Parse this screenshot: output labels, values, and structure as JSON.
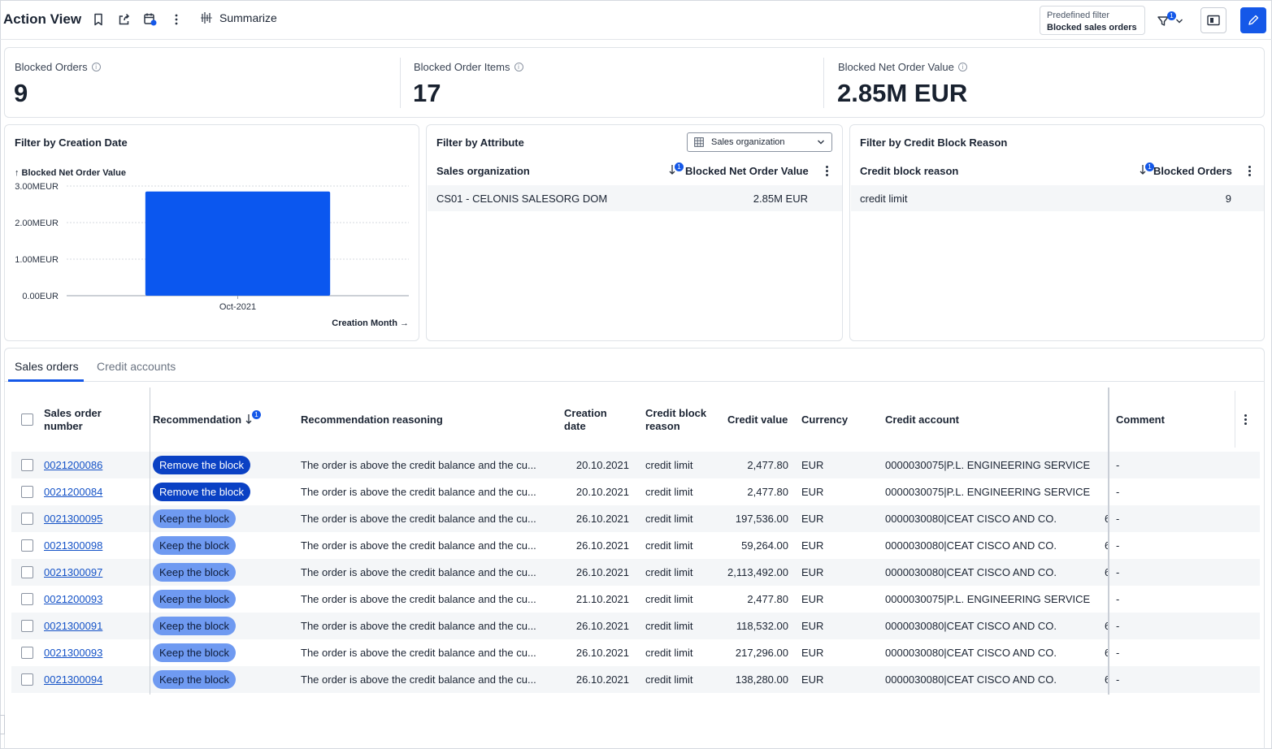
{
  "header": {
    "title": "Action View",
    "summarize_label": "Summarize",
    "predefined_filter_label": "Predefined filter",
    "predefined_filter_value": "Blocked sales orders",
    "filter_count": "1",
    "icons": [
      "bookmark-icon",
      "share-icon",
      "calendar-icon",
      "more-vertical-icon",
      "sparkle-icon",
      "filter-icon",
      "panel-icon",
      "pencil-icon"
    ],
    "accent_color": "#1558e8"
  },
  "kpis": [
    {
      "label": "Blocked Orders",
      "value": "9"
    },
    {
      "label": "Blocked Order Items",
      "value": "17"
    },
    {
      "label": "Blocked Net Order Value",
      "value": "2.85M EUR"
    }
  ],
  "creation_date_card": {
    "title": "Filter by Creation Date",
    "y_title": "↑ Blocked Net Order Value",
    "x_title": "Creation Month →"
  },
  "chart_data": {
    "type": "bar",
    "categories": [
      "Oct-2021"
    ],
    "values": [
      2.85
    ],
    "y_ticks": [
      "0.00EUR",
      "1.00MEUR",
      "2.00MEUR",
      "3.00MEUR"
    ],
    "ylim": [
      0,
      3
    ],
    "ylabel": "↑ Blocked Net Order Value",
    "xlabel": "Creation Month →",
    "grid": true,
    "bar_color": "#0b57ef"
  },
  "attribute_card": {
    "title": "Filter by Attribute",
    "dropdown_value": "Sales organization",
    "col1": "Sales organization",
    "col2": "Blocked Net Order Value",
    "sort_badge": "1",
    "rows": [
      {
        "name": "CS01 - CELONIS SALESORG DOM",
        "value": "2.85M EUR"
      }
    ]
  },
  "credit_card": {
    "title": "Filter by Credit Block Reason",
    "col1": "Credit block reason",
    "col2": "Blocked Orders",
    "sort_badge": "1",
    "rows": [
      {
        "name": "credit limit",
        "value": "9"
      }
    ]
  },
  "tabs": [
    {
      "label": "Sales orders",
      "active": true
    },
    {
      "label": "Credit accounts",
      "active": false
    }
  ],
  "table": {
    "headers": {
      "order": "Sales order number",
      "recommendation": "Recommendation",
      "reasoning": "Recommendation reasoning",
      "creation": "Creation date",
      "reason": "Credit block reason",
      "credit_value": "Credit value",
      "currency": "Currency",
      "account": "Credit account",
      "comment": "Comment"
    },
    "sort_badge": "1",
    "overflow_char": "6",
    "rows": [
      {
        "order": "0021200086",
        "rec": "Remove the block",
        "rec_type": "remove",
        "reasoning": "The order is above the credit balance and the cu...",
        "date": "20.10.2021",
        "reason": "credit limit",
        "value": "2,477.80",
        "currency": "EUR",
        "account": "0000030075|P.L. ENGINEERING SERVICE",
        "comment": "-",
        "overflow": false
      },
      {
        "order": "0021200084",
        "rec": "Remove the block",
        "rec_type": "remove",
        "reasoning": "The order is above the credit balance and the cu...",
        "date": "20.10.2021",
        "reason": "credit limit",
        "value": "2,477.80",
        "currency": "EUR",
        "account": "0000030075|P.L. ENGINEERING SERVICE",
        "comment": "-",
        "overflow": false
      },
      {
        "order": "0021300095",
        "rec": "Keep the block",
        "rec_type": "keep",
        "reasoning": "The order is above the credit balance and the cu...",
        "date": "26.10.2021",
        "reason": "credit limit",
        "value": "197,536.00",
        "currency": "EUR",
        "account": "0000030080|CEAT CISCO AND CO.",
        "comment": "-",
        "overflow": true
      },
      {
        "order": "0021300098",
        "rec": "Keep the block",
        "rec_type": "keep",
        "reasoning": "The order is above the credit balance and the cu...",
        "date": "26.10.2021",
        "reason": "credit limit",
        "value": "59,264.00",
        "currency": "EUR",
        "account": "0000030080|CEAT CISCO AND CO.",
        "comment": "-",
        "overflow": true
      },
      {
        "order": "0021300097",
        "rec": "Keep the block",
        "rec_type": "keep",
        "reasoning": "The order is above the credit balance and the cu...",
        "date": "26.10.2021",
        "reason": "credit limit",
        "value": "2,113,492.00",
        "currency": "EUR",
        "account": "0000030080|CEAT CISCO AND CO.",
        "comment": "-",
        "overflow": true
      },
      {
        "order": "0021200093",
        "rec": "Keep the block",
        "rec_type": "keep",
        "reasoning": "The order is above the credit balance and the cu...",
        "date": "21.10.2021",
        "reason": "credit limit",
        "value": "2,477.80",
        "currency": "EUR",
        "account": "0000030075|P.L. ENGINEERING SERVICE",
        "comment": "-",
        "overflow": false
      },
      {
        "order": "0021300091",
        "rec": "Keep the block",
        "rec_type": "keep",
        "reasoning": "The order is above the credit balance and the cu...",
        "date": "26.10.2021",
        "reason": "credit limit",
        "value": "118,532.00",
        "currency": "EUR",
        "account": "0000030080|CEAT CISCO AND CO.",
        "comment": "-",
        "overflow": true
      },
      {
        "order": "0021300093",
        "rec": "Keep the block",
        "rec_type": "keep",
        "reasoning": "The order is above the credit balance and the cu...",
        "date": "26.10.2021",
        "reason": "credit limit",
        "value": "217,296.00",
        "currency": "EUR",
        "account": "0000030080|CEAT CISCO AND CO.",
        "comment": "-",
        "overflow": true
      },
      {
        "order": "0021300094",
        "rec": "Keep the block",
        "rec_type": "keep",
        "reasoning": "The order is above the credit balance and the cu...",
        "date": "26.10.2021",
        "reason": "credit limit",
        "value": "138,280.00",
        "currency": "EUR",
        "account": "0000030080|CEAT CISCO AND CO.",
        "comment": "-",
        "overflow": true
      }
    ]
  }
}
